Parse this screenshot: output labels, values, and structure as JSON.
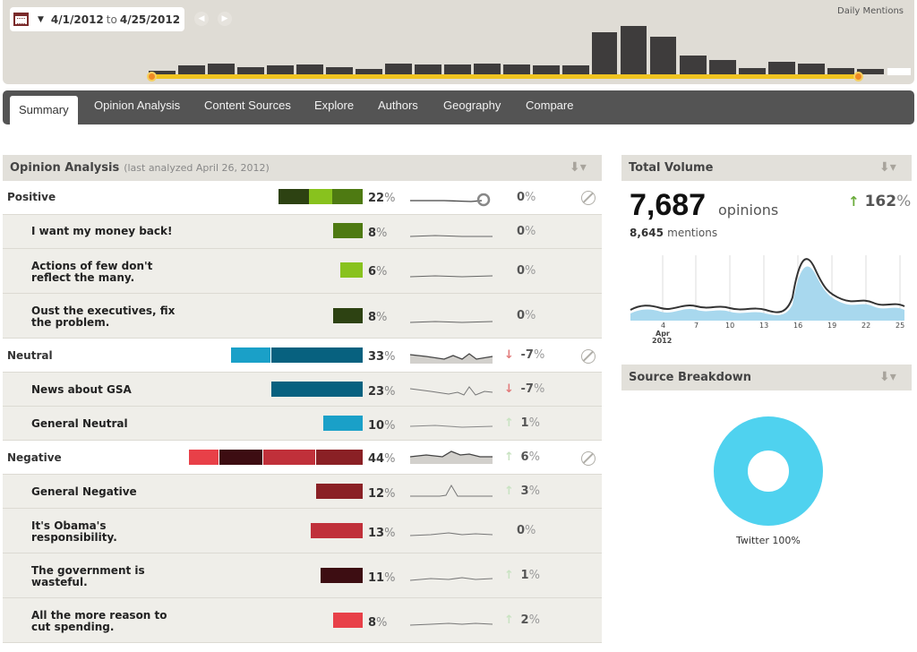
{
  "timeline": {
    "start_date": "4/1/2012",
    "to_label": "to",
    "end_date": "4/25/2012",
    "label": "Daily Mentions",
    "prev_icon": "arrow-left-icon",
    "next_icon": "arrow-right-icon"
  },
  "tabs": [
    "Summary",
    "Opinion Analysis",
    "Content Sources",
    "Explore",
    "Authors",
    "Geography",
    "Compare"
  ],
  "active_tab": "Summary",
  "opinion": {
    "title": "Opinion Analysis",
    "subtitle": "(last analyzed April 26, 2012)",
    "rows": [
      {
        "name": "Positive",
        "kind": "group",
        "pct": "22",
        "change": "0",
        "arrow": ""
      },
      {
        "name": "I want my money back!",
        "kind": "sub",
        "pct": "8",
        "change": "0",
        "arrow": ""
      },
      {
        "name": "Actions of few don't reflect the many.",
        "kind": "sub",
        "pct": "6",
        "change": "0",
        "arrow": ""
      },
      {
        "name": "Oust the executives, fix the problem.",
        "kind": "sub",
        "pct": "8",
        "change": "0",
        "arrow": ""
      },
      {
        "name": "Neutral",
        "kind": "group",
        "pct": "33",
        "change": "-7",
        "arrow": "down"
      },
      {
        "name": "News about GSA",
        "kind": "sub",
        "pct": "23",
        "change": "-7",
        "arrow": "down"
      },
      {
        "name": "General Neutral",
        "kind": "sub",
        "pct": "10",
        "change": "1",
        "arrow": "up"
      },
      {
        "name": "Negative",
        "kind": "group",
        "pct": "44",
        "change": "6",
        "arrow": "up"
      },
      {
        "name": "General Negative",
        "kind": "sub",
        "pct": "12",
        "change": "3",
        "arrow": "up"
      },
      {
        "name": "It's Obama's responsibility.",
        "kind": "sub",
        "pct": "13",
        "change": "0",
        "arrow": ""
      },
      {
        "name": "The government is wasteful.",
        "kind": "sub",
        "pct": "11",
        "change": "1",
        "arrow": "up"
      },
      {
        "name": "All the more reason to cut spending.",
        "kind": "sub",
        "pct": "8",
        "change": "2",
        "arrow": "up"
      }
    ],
    "pct_unit": "%",
    "colors": {
      "positive": [
        "#2d4212",
        "#88c21e",
        "#4e7a12"
      ],
      "neutral": [
        "#1aa0c8",
        "#07617f"
      ],
      "negative": [
        "#e84048",
        "#3d0d12",
        "#c0303a",
        "#8a2025"
      ]
    }
  },
  "total_volume": {
    "title": "Total Volume",
    "count": "7,687",
    "unit": "opinions",
    "mentions": "8,645",
    "mentions_label": "mentions",
    "growth": "162",
    "growth_unit": "%"
  },
  "volume_chart": {
    "x_ticks": [
      "4",
      "7",
      "10",
      "13",
      "16",
      "19",
      "22",
      "25"
    ],
    "month": "Apr",
    "year": "2012"
  },
  "source_breakdown": {
    "title": "Source Breakdown",
    "label": "Twitter 100%",
    "color": "#4fd2ef"
  },
  "chart_data": {
    "type": "pie",
    "categories": [
      "Twitter"
    ],
    "values": [
      100
    ]
  }
}
